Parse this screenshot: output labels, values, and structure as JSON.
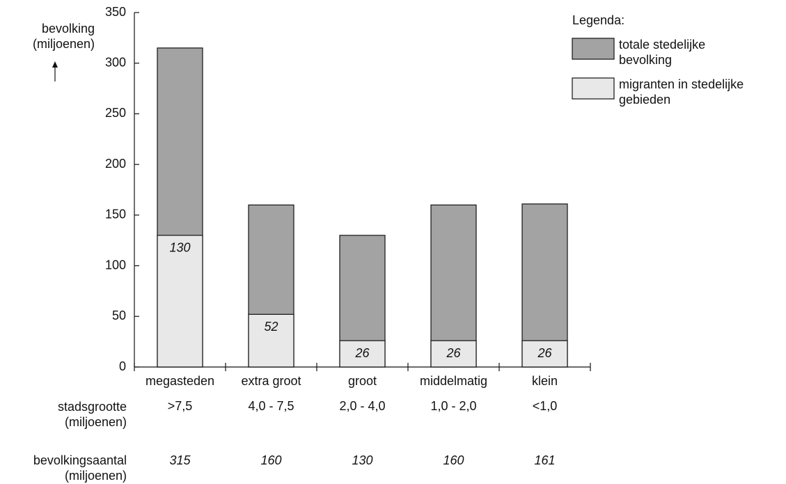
{
  "chart_data": {
    "type": "bar",
    "y_label": "bevolking\n(miljoenen)",
    "legend_title": "Legenda:",
    "categories": [
      "megasteden",
      "extra groot",
      "groot",
      "middelmatig",
      "klein"
    ],
    "size_label": "stadsgrootte\n(miljoenen)",
    "size_classes": [
      ">7,5",
      "4,0 - 7,5",
      "2,0 - 4,0",
      "1,0 - 2,0",
      "<1,0"
    ],
    "total_label": "bevolkingsaantal\n(miljoenen)",
    "series": [
      {
        "name": "totale stedelijke\nbevolking",
        "color": "#a3a3a3",
        "values": [
          315,
          160,
          130,
          160,
          161
        ]
      },
      {
        "name": "migranten in stedelijke\ngebieden",
        "color": "#e8e8e8",
        "values": [
          130,
          52,
          26,
          26,
          26
        ]
      }
    ],
    "ylim": [
      0,
      350
    ],
    "yticks": [
      0,
      50,
      100,
      150,
      200,
      250,
      300,
      350
    ]
  }
}
